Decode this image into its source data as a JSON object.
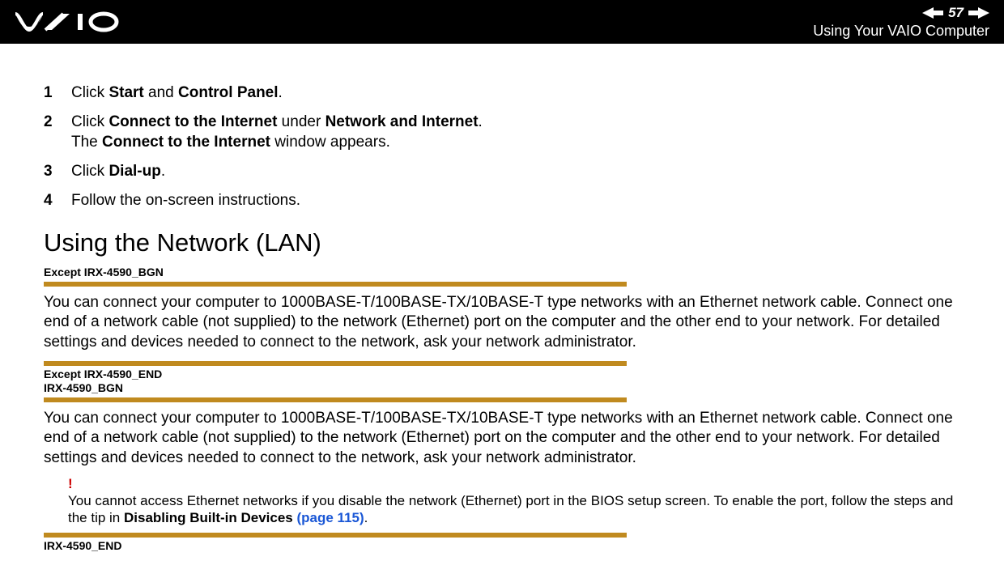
{
  "header": {
    "page_number": "57",
    "section_title": "Using Your VAIO Computer"
  },
  "steps": [
    {
      "num": "1",
      "parts": [
        "Click ",
        {
          "b": "Start"
        },
        " and ",
        {
          "b": "Control Panel"
        },
        "."
      ]
    },
    {
      "num": "2",
      "parts": [
        "Click ",
        {
          "b": "Connect to the Internet"
        },
        " under ",
        {
          "b": "Network and Internet"
        },
        "."
      ],
      "sub_parts": [
        "The ",
        {
          "b": "Connect to the Internet"
        },
        " window appears."
      ]
    },
    {
      "num": "3",
      "parts": [
        "Click ",
        {
          "b": "Dial-up"
        },
        "."
      ]
    },
    {
      "num": "4",
      "parts": [
        "Follow the on-screen instructions."
      ]
    }
  ],
  "heading": "Using the Network (LAN)",
  "tag1": "Except IRX-4590_BGN",
  "para1": "You can connect your computer to 1000BASE-T/100BASE-TX/10BASE-T type networks with an Ethernet network cable. Connect one end of a network cable (not supplied) to the network (Ethernet) port on the computer and the other end to your network. For detailed settings and devices needed to connect to the network, ask your network administrator.",
  "tag2a": "Except IRX-4590_END",
  "tag2b": "IRX-4590_BGN",
  "para2": "You can connect your computer to 1000BASE-T/100BASE-TX/10BASE-T type networks with an Ethernet network cable. Connect one end of a network cable (not supplied) to the network (Ethernet) port on the computer and the other end to your network. For detailed settings and devices needed to connect to the network, ask your network administrator.",
  "note": {
    "bang": "!",
    "text_parts": [
      "You cannot access Ethernet networks if you disable the network (Ethernet) port in the BIOS setup screen. To enable the port, follow the steps and the tip in ",
      {
        "b": "Disabling Built-in Devices "
      },
      {
        "link": "(page 115)"
      },
      "."
    ]
  },
  "tag3": "IRX-4590_END",
  "colors": {
    "gold_bar": "#c08a1f",
    "note_red": "#cc0000",
    "link_blue": "#1a57d6",
    "header_bg": "#000000",
    "header_fg": "#ffffff"
  }
}
